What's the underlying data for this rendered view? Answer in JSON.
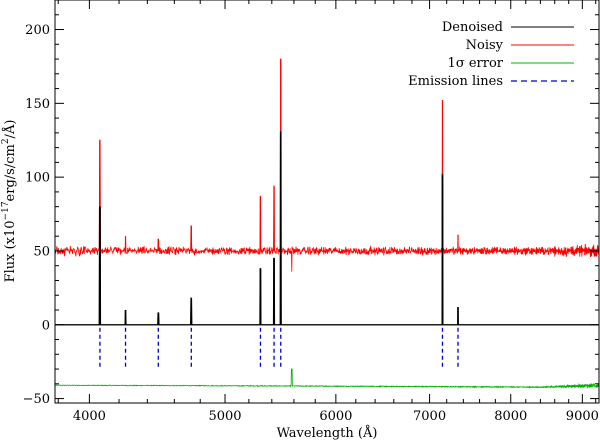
{
  "chart_data": {
    "type": "line",
    "xlabel": "Wavelength (Å)",
    "ylabel_main": "Flux (x10",
    "ylabel_exp1": "−17",
    "ylabel_mid": "erg/s/cm",
    "ylabel_exp2": "2",
    "ylabel_end": "/Å)",
    "x_scale": "log",
    "xlim": [
      3780,
      9250
    ],
    "ylim": [
      -53,
      220
    ],
    "x_ticks": [
      4000,
      5000,
      6000,
      7000,
      8000,
      9000
    ],
    "x_tick_labels": [
      "4000",
      "5000",
      "6000",
      "7000",
      "8000",
      "9000"
    ],
    "y_ticks": [
      -50,
      0,
      50,
      100,
      150,
      200
    ],
    "y_tick_labels": [
      "−50",
      "0",
      "50",
      "100",
      "150",
      "200"
    ],
    "zero_line": 0,
    "legend": [
      {
        "label": "Denoised",
        "color": "#000000",
        "style": "solid"
      },
      {
        "label": "Noisy",
        "color": "#ff0000",
        "style": "solid"
      },
      {
        "label": "1σ error",
        "color": "#00b000",
        "style": "solid"
      },
      {
        "label": "Emission lines",
        "color": "#0000cc",
        "style": "dashed"
      }
    ],
    "legend_position": "top-right",
    "series": [
      {
        "name": "Noisy",
        "color": "#ff0000",
        "baseline": 50,
        "noise": 1.6
      },
      {
        "name": "Denoised",
        "color": "#000000",
        "baseline": 0
      },
      {
        "name": "1σ error",
        "color": "#00b000",
        "baseline": -41
      }
    ],
    "lines": [
      {
        "wavelength": 4070,
        "denoised": 80,
        "noisy": 125
      },
      {
        "wavelength": 4245,
        "denoised": 10,
        "noisy": 60
      },
      {
        "wavelength": 4480,
        "denoised": 8,
        "noisy": 58
      },
      {
        "wavelength": 4730,
        "denoised": 18,
        "noisy": 67
      },
      {
        "wavelength": 5300,
        "denoised": 38,
        "noisy": 87
      },
      {
        "wavelength": 5420,
        "denoised": 45,
        "noisy": 94
      },
      {
        "wavelength": 5480,
        "denoised": 131,
        "noisy": 180
      },
      {
        "wavelength": 7150,
        "denoised": 102,
        "noisy": 152
      },
      {
        "wavelength": 7335,
        "denoised": 12,
        "noisy": 61
      }
    ]
  }
}
